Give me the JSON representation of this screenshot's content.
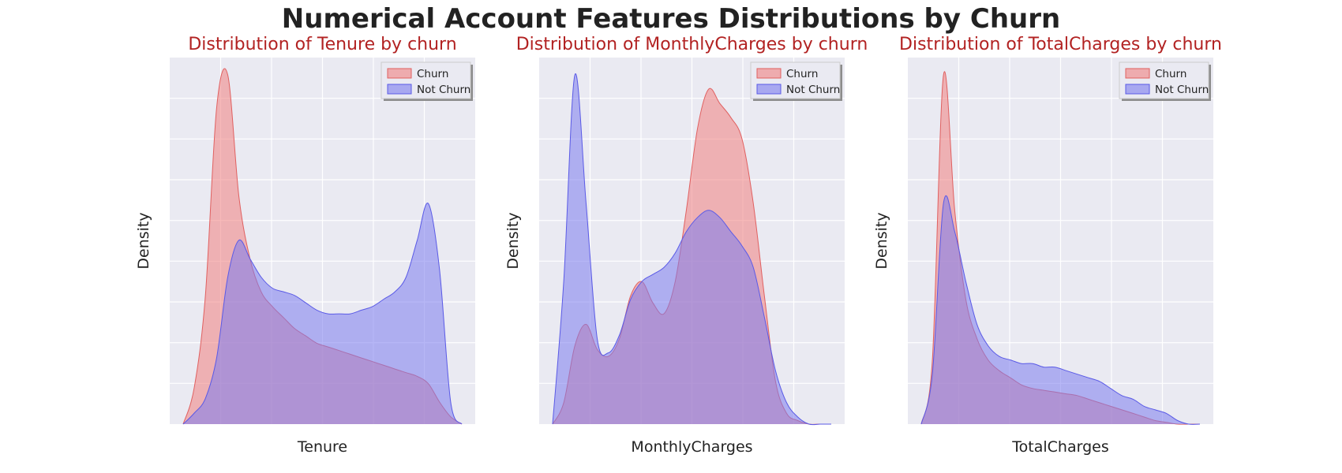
{
  "figure": {
    "title": "Numerical Account Features Distributions by Churn"
  },
  "colors": {
    "churn_fill": "#f08080",
    "not_churn_fill": "#7b7bef",
    "churn_line": "#e06060",
    "not_churn_line": "#5a5ae6",
    "panel_bg": "#eaeaf2",
    "grid": "#ffffff",
    "subplot_title": "#b22222",
    "axis_label": "#222222"
  },
  "legend": {
    "labels": [
      "Churn",
      "Not Churn"
    ],
    "placement": "upper right"
  },
  "chart_data": [
    {
      "type": "area",
      "title": "Distribution of Tenure by churn",
      "xlabel": "Tenure",
      "ylabel": "Density",
      "grid": true,
      "x": [
        0.0,
        0.04,
        0.08,
        0.12,
        0.16,
        0.2,
        0.24,
        0.28,
        0.32,
        0.36,
        0.4,
        0.44,
        0.48,
        0.52,
        0.56,
        0.6,
        0.64,
        0.68,
        0.72,
        0.76,
        0.8,
        0.84,
        0.88,
        0.92,
        0.96,
        1.0
      ],
      "series": [
        {
          "name": "Churn",
          "values": [
            0.0,
            0.1,
            0.35,
            0.86,
            0.95,
            0.62,
            0.45,
            0.36,
            0.32,
            0.29,
            0.26,
            0.24,
            0.22,
            0.21,
            0.2,
            0.19,
            0.18,
            0.17,
            0.16,
            0.15,
            0.14,
            0.13,
            0.11,
            0.06,
            0.02,
            0.0
          ]
        },
        {
          "name": "Not Churn",
          "values": [
            0.0,
            0.03,
            0.07,
            0.18,
            0.4,
            0.5,
            0.45,
            0.4,
            0.37,
            0.36,
            0.35,
            0.33,
            0.31,
            0.3,
            0.3,
            0.3,
            0.31,
            0.32,
            0.34,
            0.36,
            0.4,
            0.5,
            0.6,
            0.42,
            0.06,
            0.0
          ]
        }
      ]
    },
    {
      "type": "area",
      "title": "Distribution of MonthlyCharges by churn",
      "xlabel": "MonthlyCharges",
      "ylabel": "Density",
      "grid": true,
      "x": [
        0.0,
        0.04,
        0.08,
        0.12,
        0.16,
        0.2,
        0.24,
        0.28,
        0.32,
        0.36,
        0.4,
        0.44,
        0.48,
        0.52,
        0.56,
        0.6,
        0.64,
        0.68,
        0.72,
        0.76,
        0.8,
        0.84,
        0.88,
        0.92,
        0.96,
        1.0
      ],
      "series": [
        {
          "name": "Churn",
          "values": [
            0.0,
            0.06,
            0.22,
            0.28,
            0.21,
            0.19,
            0.24,
            0.36,
            0.4,
            0.34,
            0.31,
            0.4,
            0.6,
            0.83,
            0.94,
            0.9,
            0.86,
            0.8,
            0.62,
            0.36,
            0.12,
            0.03,
            0.01,
            0.0,
            0.0,
            0.0
          ]
        },
        {
          "name": "Not Churn",
          "values": [
            0.0,
            0.4,
            0.98,
            0.62,
            0.24,
            0.2,
            0.25,
            0.35,
            0.4,
            0.42,
            0.44,
            0.48,
            0.54,
            0.58,
            0.6,
            0.58,
            0.54,
            0.5,
            0.44,
            0.3,
            0.15,
            0.06,
            0.02,
            0.0,
            0.0,
            0.0
          ]
        }
      ]
    },
    {
      "type": "area",
      "title": "Distribution of TotalCharges by churn",
      "xlabel": "TotalCharges",
      "ylabel": "Density",
      "grid": true,
      "x": [
        0.0,
        0.04,
        0.08,
        0.12,
        0.16,
        0.2,
        0.24,
        0.28,
        0.32,
        0.36,
        0.4,
        0.44,
        0.48,
        0.52,
        0.56,
        0.6,
        0.64,
        0.68,
        0.72,
        0.76,
        0.8,
        0.84,
        0.88,
        0.92,
        0.96,
        1.0
      ],
      "series": [
        {
          "name": "Churn",
          "values": [
            0.0,
            0.18,
            0.98,
            0.6,
            0.35,
            0.24,
            0.18,
            0.15,
            0.13,
            0.11,
            0.1,
            0.095,
            0.09,
            0.085,
            0.08,
            0.07,
            0.06,
            0.05,
            0.04,
            0.03,
            0.02,
            0.01,
            0.005,
            0.0,
            0.0,
            0.0
          ]
        },
        {
          "name": "Not Churn",
          "values": [
            0.0,
            0.14,
            0.62,
            0.54,
            0.4,
            0.28,
            0.22,
            0.19,
            0.18,
            0.17,
            0.17,
            0.16,
            0.16,
            0.15,
            0.14,
            0.13,
            0.12,
            0.1,
            0.08,
            0.07,
            0.05,
            0.04,
            0.03,
            0.01,
            0.0,
            0.0
          ]
        }
      ]
    }
  ]
}
